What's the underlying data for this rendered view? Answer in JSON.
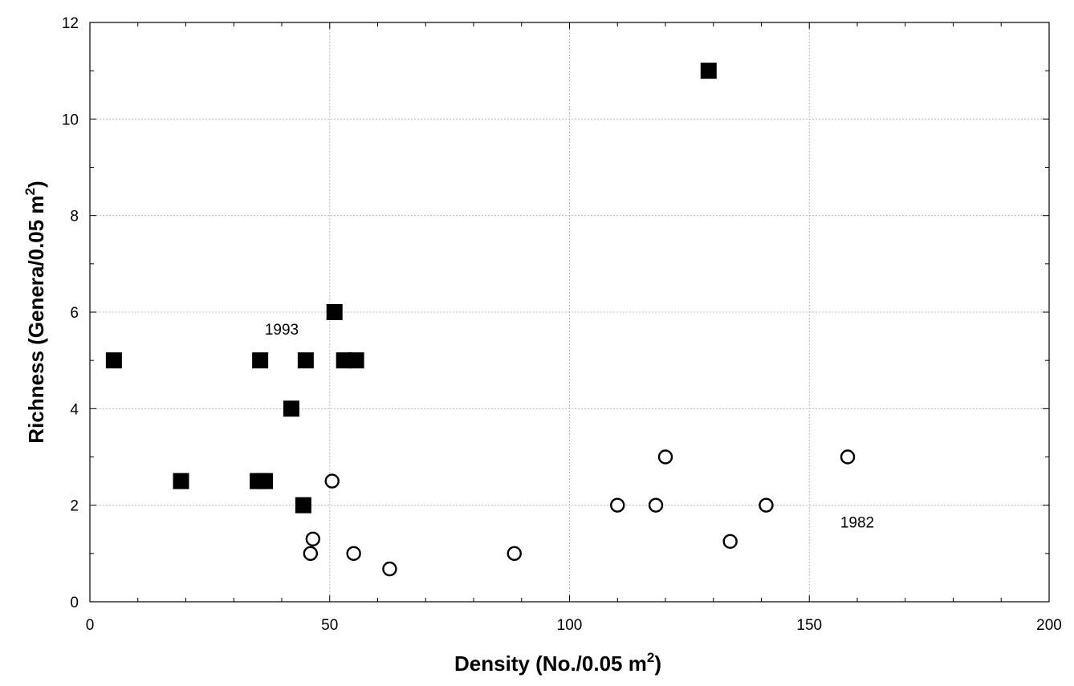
{
  "chart_data": {
    "type": "scatter",
    "title": "",
    "xlabel": "Density (No./0.05 m",
    "xlabel_sup": "2",
    "xlabel_end": ")",
    "ylabel": "Richness (Genera/0.05 m",
    "ylabel_sup": "2",
    "ylabel_end": ")",
    "xlim": [
      0,
      200
    ],
    "ylim": [
      0,
      12
    ],
    "x_ticks": [
      "0",
      "50",
      "100",
      "150",
      "200"
    ],
    "y_ticks": [
      "0",
      "2",
      "4",
      "6",
      "8",
      "10",
      "12"
    ],
    "grid": true,
    "legend": "none",
    "series": [
      {
        "marker": "filled-square",
        "color": "#000000",
        "points": [
          {
            "x": 5,
            "y": 5
          },
          {
            "x": 19,
            "y": 2.5
          },
          {
            "x": 35,
            "y": 2.5
          },
          {
            "x": 36.5,
            "y": 2.5
          },
          {
            "x": 35.5,
            "y": 5
          },
          {
            "x": 42,
            "y": 4
          },
          {
            "x": 44.5,
            "y": 2
          },
          {
            "x": 45,
            "y": 5
          },
          {
            "x": 51,
            "y": 6
          },
          {
            "x": 53,
            "y": 5
          },
          {
            "x": 55.5,
            "y": 5
          },
          {
            "x": 129,
            "y": 11
          }
        ]
      },
      {
        "marker": "open-circle",
        "color": "#000000",
        "points": [
          {
            "x": 46,
            "y": 1
          },
          {
            "x": 46.5,
            "y": 1.3
          },
          {
            "x": 50.5,
            "y": 2.5
          },
          {
            "x": 55,
            "y": 1
          },
          {
            "x": 62.5,
            "y": 0.68
          },
          {
            "x": 88.5,
            "y": 1
          },
          {
            "x": 110,
            "y": 2
          },
          {
            "x": 118,
            "y": 2
          },
          {
            "x": 120,
            "y": 3
          },
          {
            "x": 133.5,
            "y": 1.25
          },
          {
            "x": 141,
            "y": 2
          },
          {
            "x": 158,
            "y": 3
          }
        ]
      }
    ],
    "annotations": [
      {
        "text": "1993",
        "x": 40,
        "y": 5.65
      },
      {
        "text": "1982",
        "x": 160,
        "y": 1.65
      }
    ]
  }
}
